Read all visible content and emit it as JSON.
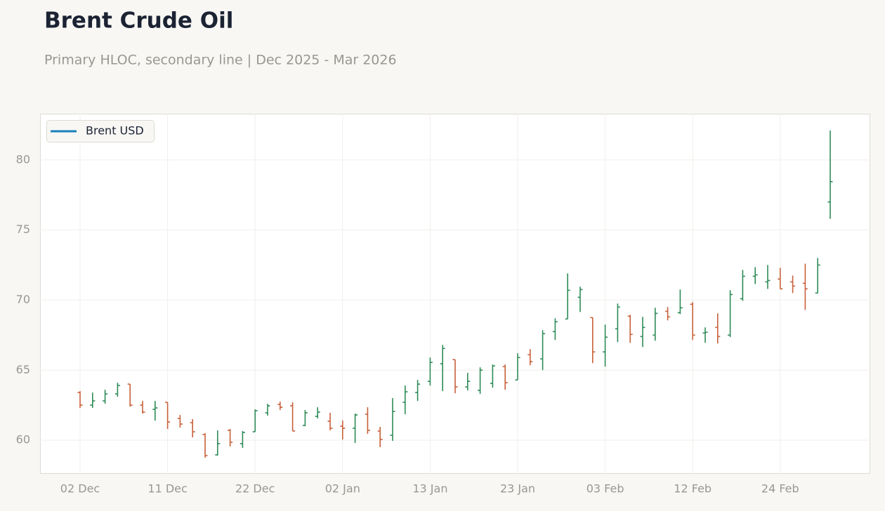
{
  "chart_data": {
    "type": "ohlc",
    "title": "Brent Crude Oil",
    "subtitle": "Primary HLOC, secondary line | Dec 2025 - Mar 2026",
    "categories": [
      "02 Dec",
      null,
      null,
      null,
      null,
      null,
      null,
      "11 Dec",
      null,
      null,
      null,
      null,
      null,
      null,
      "22 Dec",
      null,
      null,
      null,
      null,
      null,
      null,
      "02 Jan",
      null,
      null,
      null,
      null,
      null,
      null,
      "13 Jan",
      null,
      null,
      null,
      null,
      null,
      null,
      "23 Jan",
      null,
      null,
      null,
      null,
      null,
      null,
      "03 Feb",
      null,
      null,
      null,
      null,
      null,
      null,
      "12 Feb",
      null,
      null,
      null,
      null,
      null,
      null,
      "24 Feb",
      null,
      null,
      null,
      null
    ],
    "open": [
      63.4,
      62.5,
      62.8,
      63.3,
      64.0,
      62.5,
      62.2,
      62.7,
      61.55,
      61.25,
      60.4,
      58.95,
      60.7,
      59.75,
      60.6,
      61.95,
      62.55,
      62.45,
      61.05,
      61.7,
      61.35,
      61.0,
      60.85,
      61.85,
      60.65,
      60.35,
      62.7,
      63.4,
      64.2,
      65.45,
      65.75,
      63.8,
      63.55,
      64.05,
      65.25,
      64.3,
      66.1,
      65.8,
      67.75,
      68.65,
      70.2,
      68.75,
      66.3,
      67.95,
      68.85,
      67.4,
      67.5,
      69.2,
      69.1,
      69.7,
      67.65,
      68.05,
      67.5,
      70.1,
      71.7,
      71.3,
      71.5,
      71.3,
      71.2,
      70.5,
      77.0
    ],
    "high": [
      63.5,
      63.4,
      63.6,
      64.1,
      64.0,
      62.8,
      62.8,
      62.7,
      61.8,
      61.5,
      60.5,
      60.7,
      60.8,
      60.65,
      62.2,
      62.6,
      62.75,
      62.7,
      62.15,
      62.35,
      61.95,
      61.4,
      61.9,
      62.35,
      60.95,
      63.0,
      63.9,
      64.3,
      65.9,
      66.8,
      65.75,
      64.8,
      65.2,
      65.4,
      65.4,
      66.2,
      66.5,
      67.85,
      68.7,
      71.9,
      70.95,
      68.75,
      68.25,
      69.75,
      68.95,
      68.8,
      69.45,
      69.5,
      70.75,
      69.85,
      68.05,
      69.05,
      70.7,
      72.15,
      72.35,
      72.5,
      72.3,
      71.75,
      72.6,
      73.0,
      82.1
    ],
    "low": [
      62.3,
      62.3,
      62.6,
      63.1,
      62.4,
      61.9,
      61.4,
      60.8,
      60.9,
      60.2,
      58.75,
      58.9,
      59.55,
      59.45,
      60.6,
      61.75,
      62.15,
      60.65,
      61.0,
      61.55,
      60.7,
      60.05,
      59.8,
      60.45,
      59.5,
      59.95,
      61.85,
      62.8,
      63.9,
      63.5,
      63.35,
      63.55,
      63.3,
      63.75,
      63.6,
      64.3,
      65.35,
      65.0,
      67.15,
      68.65,
      69.15,
      65.5,
      65.25,
      67.0,
      66.95,
      66.65,
      67.1,
      68.55,
      69.0,
      67.15,
      66.95,
      66.9,
      67.35,
      69.95,
      71.15,
      70.8,
      70.8,
      70.5,
      69.3,
      70.5,
      75.8
    ],
    "close": [
      62.5,
      62.8,
      63.3,
      63.9,
      62.5,
      62.0,
      62.3,
      61.3,
      61.15,
      60.6,
      58.9,
      59.75,
      59.85,
      60.55,
      62.1,
      62.45,
      62.35,
      60.65,
      61.95,
      62.0,
      60.85,
      60.85,
      61.8,
      60.7,
      60.05,
      62.05,
      63.45,
      64.0,
      65.55,
      66.55,
      63.8,
      64.2,
      65.0,
      65.3,
      64.1,
      65.9,
      65.6,
      67.6,
      68.45,
      70.7,
      70.75,
      66.3,
      67.35,
      69.5,
      67.55,
      68.05,
      69.05,
      68.8,
      69.45,
      67.5,
      67.7,
      67.4,
      70.4,
      71.7,
      71.8,
      71.4,
      70.8,
      71.0,
      70.8,
      72.5,
      78.45
    ],
    "up_color": "#2e8b57",
    "down_color": "#c8603a",
    "ylim": [
      57.6,
      83.3
    ],
    "yticks": [
      60,
      65,
      70,
      75,
      80
    ],
    "grid": true,
    "legend": {
      "position": "upper left",
      "entries": [
        {
          "name": "Brent USD",
          "color": "#1a80bb"
        }
      ]
    }
  }
}
